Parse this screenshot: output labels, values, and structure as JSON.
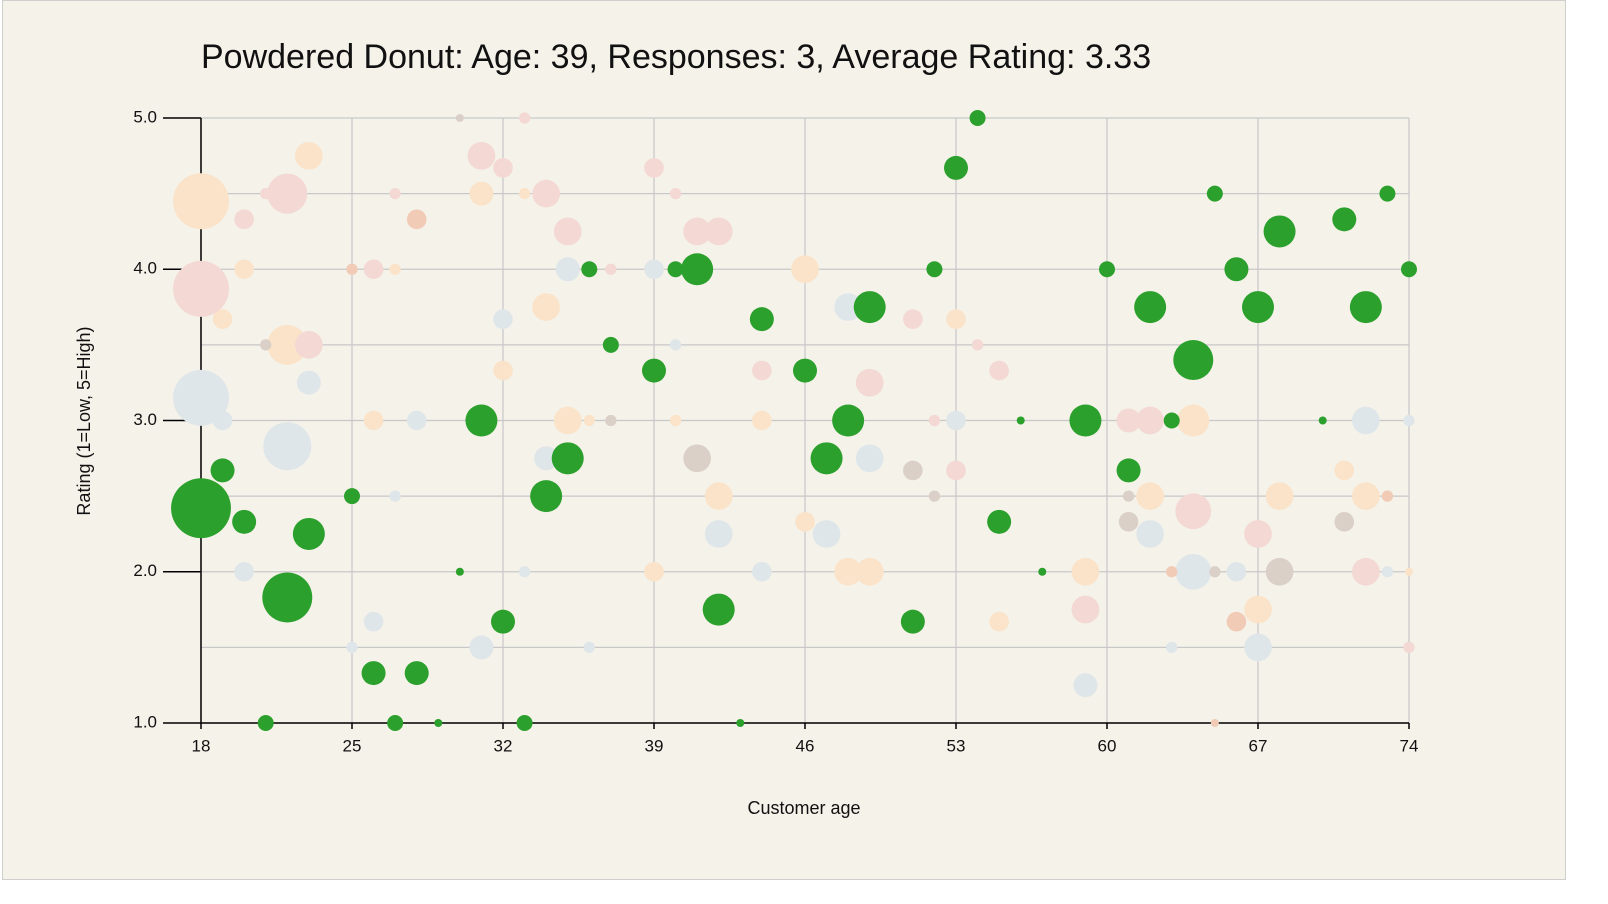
{
  "chart_data": {
    "type": "scatter",
    "title": "Powdered Donut: Age: 39, Responses: 3, Average Rating: 3.33",
    "x_label": "Customer age",
    "y_label": "Rating (1=Low, 5=High)",
    "xlim": [
      18,
      74
    ],
    "xticks": [
      18,
      25,
      32,
      39,
      46,
      53,
      60,
      67,
      74
    ],
    "ylim": [
      1,
      5
    ],
    "yticks": [
      {
        "value": 1,
        "label": "1.0"
      },
      {
        "value": 2,
        "label": "2.0"
      },
      {
        "value": 3,
        "label": "3.0"
      },
      {
        "value": 4,
        "label": "4.0"
      },
      {
        "value": 5,
        "label": "5.0"
      }
    ],
    "ygrid": [
      1.5,
      2.5,
      3.5,
      4.5
    ],
    "grid": true,
    "series": [
      {
        "color": "#dfe6e9",
        "x": [
          18,
          19,
          20,
          22,
          23,
          25,
          26,
          27,
          28,
          31,
          32,
          33,
          34,
          35,
          36,
          39,
          40,
          42,
          44,
          47,
          48,
          49,
          53,
          59,
          62,
          63,
          64,
          66,
          67,
          72,
          73,
          74
        ],
        "values": [
          3.15,
          3.0,
          2.0,
          2.83,
          3.25,
          1.5,
          1.67,
          2.5,
          3.0,
          1.5,
          3.67,
          2.0,
          2.75,
          4.0,
          1.5,
          4.0,
          3.5,
          2.25,
          2.0,
          2.25,
          3.75,
          2.75,
          3.0,
          1.25,
          2.25,
          1.5,
          2.0,
          2.0,
          1.5,
          3.0,
          2.0,
          3.0
        ],
        "sizes": [
          49,
          6,
          6,
          36,
          9,
          2,
          6,
          2,
          6,
          9,
          6,
          2,
          9,
          9,
          2,
          6,
          2,
          12,
          6,
          12,
          12,
          12,
          6,
          9,
          12,
          2,
          20,
          6,
          12,
          12,
          2,
          2
        ]
      },
      {
        "color": "#fae3c8",
        "x": [
          18,
          19,
          20,
          22,
          23,
          26,
          27,
          31,
          32,
          33,
          34,
          35,
          36,
          39,
          40,
          42,
          44,
          46,
          46,
          48,
          49,
          53,
          55,
          59,
          62,
          64,
          67,
          68,
          71,
          72,
          74
        ],
        "values": [
          4.45,
          3.67,
          4.0,
          3.5,
          4.75,
          3.0,
          4.0,
          4.5,
          3.33,
          4.5,
          3.75,
          3.0,
          3.0,
          2.0,
          3.0,
          2.5,
          3.0,
          4.0,
          2.33,
          2.0,
          2.0,
          3.67,
          1.67,
          2.0,
          2.5,
          3.0,
          1.75,
          2.5,
          2.67,
          2.5,
          2.0
        ],
        "sizes": [
          49,
          6,
          6,
          25,
          12,
          6,
          2,
          9,
          6,
          2,
          12,
          12,
          2,
          6,
          2,
          12,
          6,
          12,
          6,
          12,
          12,
          6,
          6,
          12,
          12,
          16,
          12,
          12,
          6,
          12,
          1
        ]
      },
      {
        "color": "#f3d8d3",
        "x": [
          18,
          20,
          21,
          22,
          23,
          25,
          26,
          27,
          31,
          32,
          33,
          34,
          35,
          37,
          39,
          40,
          41,
          42,
          44,
          48,
          49,
          51,
          52,
          53,
          54,
          55,
          59,
          61,
          62,
          64,
          67,
          72,
          74
        ],
        "values": [
          3.87,
          4.33,
          4.5,
          4.5,
          3.5,
          4.0,
          4.0,
          4.5,
          4.75,
          4.67,
          5.0,
          4.5,
          4.25,
          4.0,
          4.67,
          4.5,
          4.25,
          4.25,
          3.33,
          3.0,
          3.25,
          3.67,
          3.0,
          2.67,
          3.5,
          3.33,
          1.75,
          3.0,
          3.0,
          2.4,
          2.25,
          2.0,
          1.5
        ],
        "sizes": [
          49,
          6,
          2,
          25,
          12,
          2,
          6,
          2,
          12,
          6,
          2,
          12,
          12,
          2,
          6,
          2,
          12,
          12,
          6,
          12,
          12,
          6,
          2,
          6,
          2,
          6,
          12,
          9,
          12,
          20,
          12,
          12,
          2
        ]
      },
      {
        "color": "#dbd0c8",
        "x": [
          21,
          30,
          37,
          41,
          51,
          52,
          61,
          61,
          65,
          68,
          71
        ],
        "values": [
          3.5,
          5.0,
          3.0,
          2.75,
          2.67,
          2.5,
          2.5,
          2.33,
          2.0,
          2.0,
          2.33
        ],
        "sizes": [
          2,
          1,
          2,
          12,
          6,
          2,
          2,
          6,
          2,
          12,
          6
        ]
      },
      {
        "color": "#f1cbb6",
        "x": [
          25,
          28,
          63,
          65,
          66,
          73
        ],
        "values": [
          4.0,
          4.33,
          2.0,
          1.0,
          1.67,
          2.5
        ],
        "sizes": [
          2,
          6,
          2,
          1,
          6,
          2
        ]
      },
      {
        "color": "#2ca02c",
        "x": [
          18,
          19,
          20,
          21,
          22,
          23,
          25,
          26,
          27,
          28,
          29,
          30,
          31,
          32,
          33,
          34,
          35,
          36,
          37,
          39,
          40,
          41,
          42,
          43,
          44,
          46,
          47,
          48,
          49,
          51,
          52,
          53,
          54,
          55,
          56,
          57,
          59,
          60,
          61,
          62,
          63,
          64,
          65,
          66,
          67,
          68,
          70,
          71,
          72,
          73,
          74
        ],
        "values": [
          2.42,
          2.67,
          2.33,
          1.0,
          1.83,
          2.25,
          2.5,
          1.33,
          1.0,
          1.33,
          1.0,
          2.0,
          3.0,
          1.67,
          1.0,
          2.5,
          2.75,
          4.0,
          3.5,
          3.33,
          4.0,
          4.0,
          1.75,
          1.0,
          3.67,
          3.33,
          2.75,
          3.0,
          3.75,
          1.67,
          4.0,
          4.67,
          5.0,
          2.33,
          3.0,
          2.0,
          3.0,
          4.0,
          2.67,
          3.75,
          3.0,
          3.4,
          4.5,
          4.0,
          3.75,
          4.25,
          3.0,
          4.33,
          3.75,
          4.5,
          4.0
        ],
        "sizes": [
          56,
          9,
          9,
          4,
          39,
          16,
          4,
          9,
          4,
          9,
          1,
          1,
          16,
          9,
          4,
          16,
          16,
          4,
          4,
          9,
          4,
          16,
          16,
          1,
          9,
          9,
          16,
          16,
          16,
          9,
          4,
          9,
          4,
          9,
          1,
          1,
          16,
          4,
          9,
          16,
          4,
          25,
          4,
          9,
          16,
          16,
          1,
          9,
          16,
          4,
          4
        ]
      }
    ]
  }
}
